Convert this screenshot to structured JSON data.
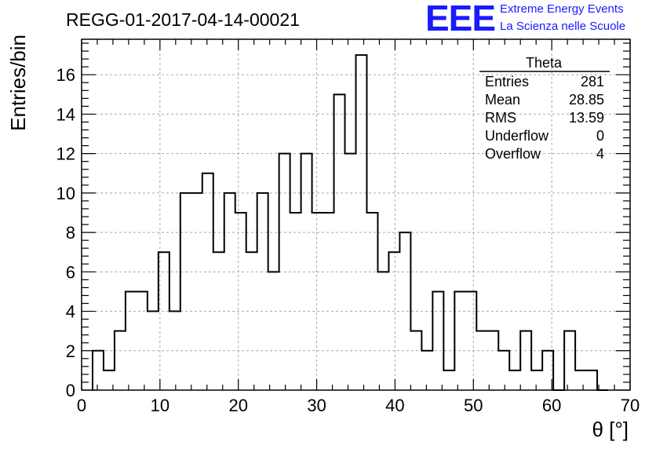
{
  "logo": {
    "text": "EEE",
    "line1": "Extreme Energy Events",
    "line2": "La Scienza nelle Scuole",
    "color": "#1a1aff"
  },
  "chart_data": {
    "type": "bar",
    "style": "step-histogram",
    "title": "REGG-01-2017-04-14-00021",
    "xlabel": "θ [°]",
    "ylabel": "Entries/bin",
    "xlim": [
      0,
      70
    ],
    "ylim": [
      0,
      17.8
    ],
    "grid": true,
    "bin_width": 1.4,
    "bin_edges_start": 1.4,
    "x_ticks": [
      0,
      10,
      20,
      30,
      40,
      50,
      60,
      70
    ],
    "y_ticks": [
      0,
      2,
      4,
      6,
      8,
      10,
      12,
      14,
      16
    ],
    "values": [
      2,
      1,
      3,
      5,
      5,
      4,
      7,
      4,
      10,
      10,
      11,
      7,
      10,
      9,
      7,
      10,
      6,
      12,
      9,
      12,
      9,
      9,
      15,
      12,
      17,
      9,
      6,
      7,
      8,
      3,
      2,
      5,
      1,
      5,
      5,
      3,
      3,
      2,
      1,
      3,
      1,
      2,
      0,
      3,
      1,
      1,
      0
    ],
    "stats_box": {
      "title": "Theta",
      "placement": "top-right",
      "rows": [
        {
          "label": "Entries",
          "value": "281"
        },
        {
          "label": "Mean",
          "value": "28.85"
        },
        {
          "label": "RMS",
          "value": "13.59"
        },
        {
          "label": "Underflow",
          "value": "0"
        },
        {
          "label": "Overflow",
          "value": "4"
        }
      ]
    }
  }
}
